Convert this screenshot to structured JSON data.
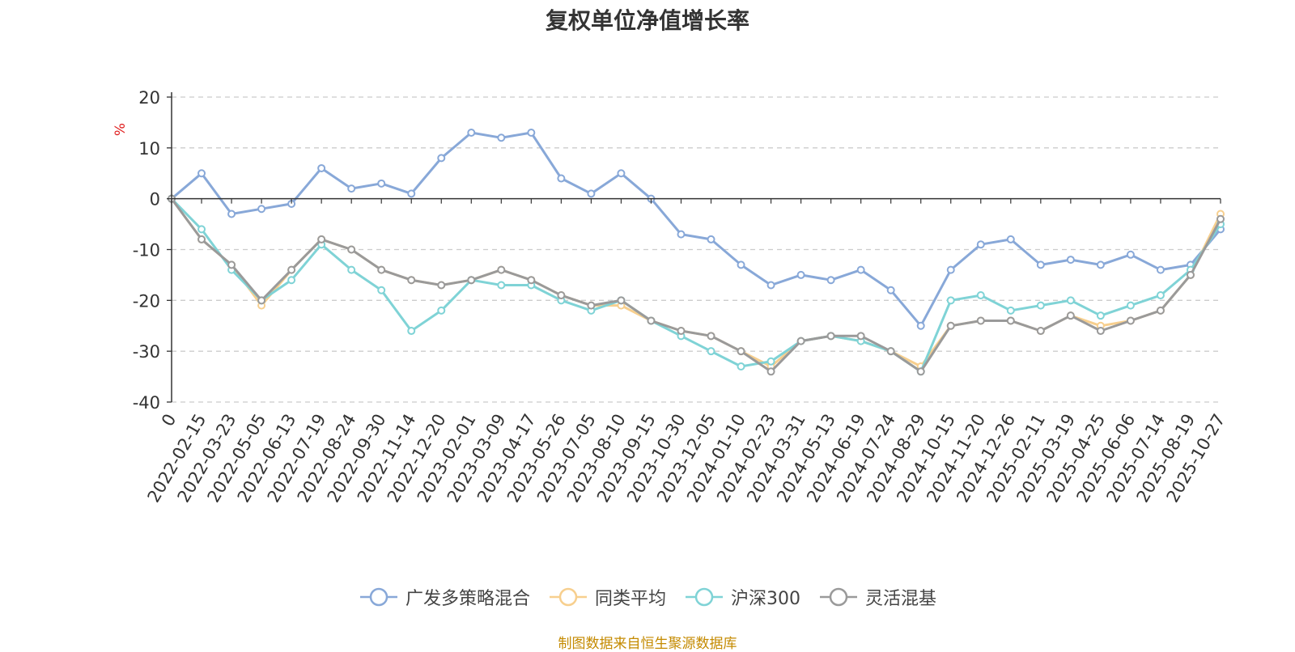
{
  "chart_data": {
    "type": "line",
    "title": "复权单位净值增长率",
    "ylabel": "%",
    "xlabel": "",
    "ylim": [
      -40,
      20
    ],
    "yticks": [
      "20",
      "10",
      "0",
      "-10",
      "-20",
      "-30",
      "-40"
    ],
    "grid": true,
    "legend_position": "bottom",
    "categories": [
      "0",
      "2022-02-15",
      "2022-03-23",
      "2022-05-05",
      "2022-06-13",
      "2022-07-19",
      "2022-08-24",
      "2022-09-30",
      "2022-11-14",
      "2022-12-20",
      "2023-02-01",
      "2023-03-09",
      "2023-04-17",
      "2023-05-26",
      "2023-07-05",
      "2023-08-10",
      "2023-09-15",
      "2023-10-30",
      "2023-12-05",
      "2024-01-10",
      "2024-02-23",
      "2024-03-31",
      "2024-05-13",
      "2024-06-19",
      "2024-07-24",
      "2024-08-29",
      "2024-10-15",
      "2024-11-20",
      "2024-12-26",
      "2025-02-11",
      "2025-03-19",
      "2025-04-25",
      "2025-06-06",
      "2025-07-14",
      "2025-08-19",
      "2025-10-27"
    ],
    "series": [
      {
        "name": "广发多策略混合",
        "color": "#88a8d8",
        "values": [
          0,
          5,
          -3,
          -2,
          -1,
          6,
          2,
          3,
          1,
          8,
          13,
          12,
          13,
          4,
          1,
          5,
          0,
          -7,
          -8,
          -13,
          -17,
          -15,
          -16,
          -14,
          -18,
          -25,
          -14,
          -9,
          -8,
          -13,
          -12,
          -13,
          -11,
          -14,
          -13,
          -6
        ]
      },
      {
        "name": "同类平均",
        "color": "#f7cf8e",
        "values": [
          0,
          -8,
          -13,
          -21,
          -14,
          -8,
          -10,
          -14,
          -16,
          -17,
          -16,
          -14,
          -16,
          -19,
          -21,
          -21,
          -24,
          -26,
          -27,
          -30,
          -33,
          -28,
          -27,
          -28,
          -30,
          -33,
          -25,
          -24,
          -24,
          -26,
          -23,
          -25,
          -24,
          -22,
          -15,
          -3
        ]
      },
      {
        "name": "沪深300",
        "color": "#7fd3d6",
        "values": [
          0,
          -6,
          -14,
          -20,
          -16,
          -9,
          -14,
          -18,
          -26,
          -22,
          -16,
          -17,
          -17,
          -20,
          -22,
          -20,
          -24,
          -27,
          -30,
          -33,
          -32,
          -28,
          -27,
          -28,
          -30,
          -34,
          -20,
          -19,
          -22,
          -21,
          -20,
          -23,
          -21,
          -19,
          -14,
          -5
        ]
      },
      {
        "name": "灵活混基",
        "color": "#9a9a9a",
        "values": [
          0,
          -8,
          -13,
          -20,
          -14,
          -8,
          -10,
          -14,
          -16,
          -17,
          -16,
          -14,
          -16,
          -19,
          -21,
          -20,
          -24,
          -26,
          -27,
          -30,
          -34,
          -28,
          -27,
          -27,
          -30,
          -34,
          -25,
          -24,
          -24,
          -26,
          -23,
          -26,
          -24,
          -22,
          -15,
          -4
        ]
      }
    ]
  },
  "footer": {
    "source_note": "制图数据来自恒生聚源数据库"
  }
}
